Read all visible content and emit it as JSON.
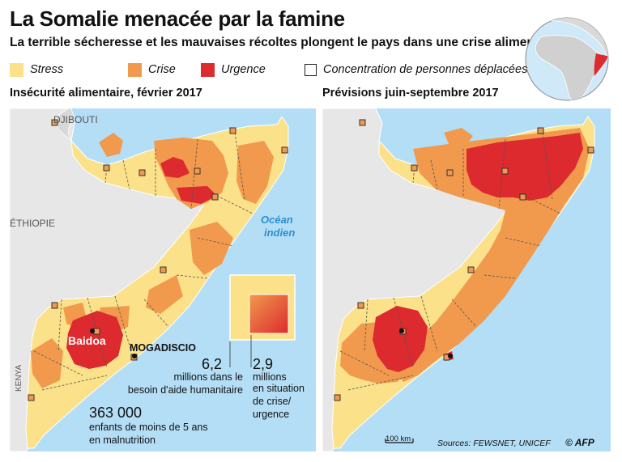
{
  "title": "La Somalie menacée par la famine",
  "subtitle": "La terrible sécheresse et les mauvaises récoltes plongent le pays dans une crise alimentaire",
  "legend": [
    {
      "label": "Stress",
      "color": "#fbe18a"
    },
    {
      "label": "Crise",
      "color": "#f19a4d"
    },
    {
      "label": "Urgence",
      "color": "#dc2a2f"
    },
    {
      "label": "Concentration de personnes déplacées"
    }
  ],
  "colors": {
    "water": "#b4def6",
    "land": "#e7e7e7",
    "stress": "#fbe18a",
    "crise": "#f19a4d",
    "urgence": "#dc2a2f"
  },
  "maps": {
    "left": {
      "title": "Insécurité alimentaire, février 2017",
      "labels": {
        "djibouti": "DJIBOUTI",
        "ethiopie": "ÉTHIOPIE",
        "kenya": "KENYA",
        "ocean1": "Océan",
        "ocean2": "indien",
        "baidoa": "Baidoa",
        "mogadiscio": "MOGADISCIO"
      },
      "stats": {
        "humanitarian_value": "6,2",
        "humanitarian_text": [
          "millions dans le",
          "besoin d'aide humanitaire"
        ],
        "crisis_value": "2,9",
        "crisis_text": [
          "millions",
          "en situation",
          "de crise/",
          "urgence"
        ],
        "children_value": "363 000",
        "children_text": [
          "enfants de moins de 5 ans",
          "en malnutrition"
        ]
      }
    },
    "right": {
      "title": "Prévisions juin-septembre 2017",
      "scale": "100 km"
    }
  },
  "sources": "Sources: FEWSNET, UNICEF",
  "credit": "© AFP"
}
